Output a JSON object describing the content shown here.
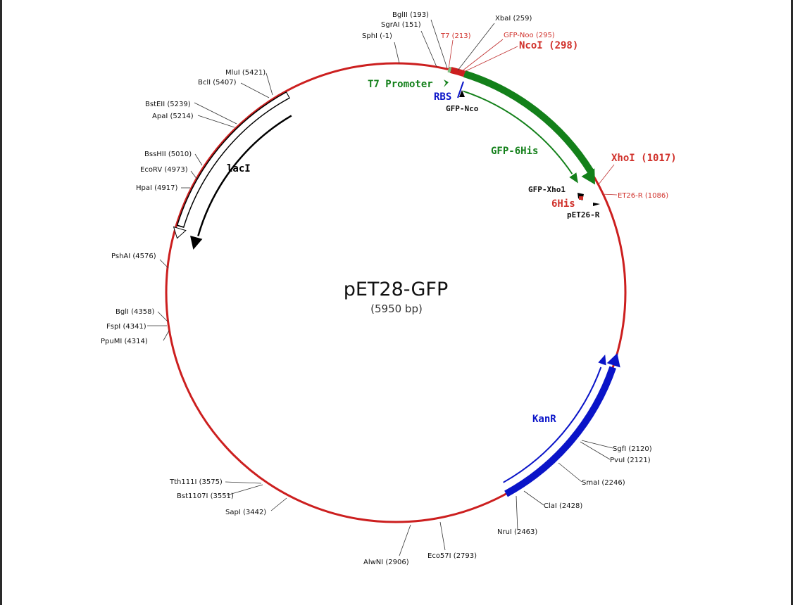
{
  "plasmid": {
    "name": "pET28-GFP",
    "size": "(5950 bp)"
  },
  "colors": {
    "backbone": "#cc1f1f",
    "gfp": "#13801a",
    "kanr": "#0a14c8",
    "laci": "#000000",
    "site_red": "#d0302a"
  },
  "features": {
    "t7_promoter": "T7 Promoter",
    "rbs": "RBS",
    "gfp_nco": "GFP-Nco",
    "gfp_6his": "GFP-6His",
    "gfp_xho1": "GFP-Xho1",
    "his6": "6His",
    "pet26r": "pET26-R",
    "kanr": "KanR",
    "laci": "lacI"
  },
  "sites": {
    "sphi": "SphI (-1)",
    "sgrai": "SgrAI (151)",
    "bglii": "BglII (193)",
    "t7": "T7 (213)",
    "xbai": "XbaI (259)",
    "gfp_noo": "GFP-Noo (295)",
    "ncoi": "NcoI (298)",
    "xhoi": "XhoI (1017)",
    "et26r": "ET26-R (1086)",
    "sgfi": "SgfI (2120)",
    "pvui": "PvuI (2121)",
    "smai": "SmaI (2246)",
    "clai": "ClaI (2428)",
    "nrui": "NruI (2463)",
    "eco57i": "Eco57I (2793)",
    "alwni": "AlwNI (2906)",
    "sapi": "SapI (3442)",
    "bst1107i": "Bst1107I (3551)",
    "tth111i": "Tth111I (3575)",
    "ppumi": "PpuMI (4314)",
    "fspi": "FspI (4341)",
    "bgli": "BglI (4358)",
    "pshai": "PshAI (4576)",
    "hpai": "HpaI (4917)",
    "ecorv": "EcoRV (4973)",
    "bsshii": "BssHII (5010)",
    "apai": "ApaI (5214)",
    "bsteii": "BstEII (5239)",
    "bcli": "BclI (5407)",
    "mlui": "MluI (5421)"
  }
}
